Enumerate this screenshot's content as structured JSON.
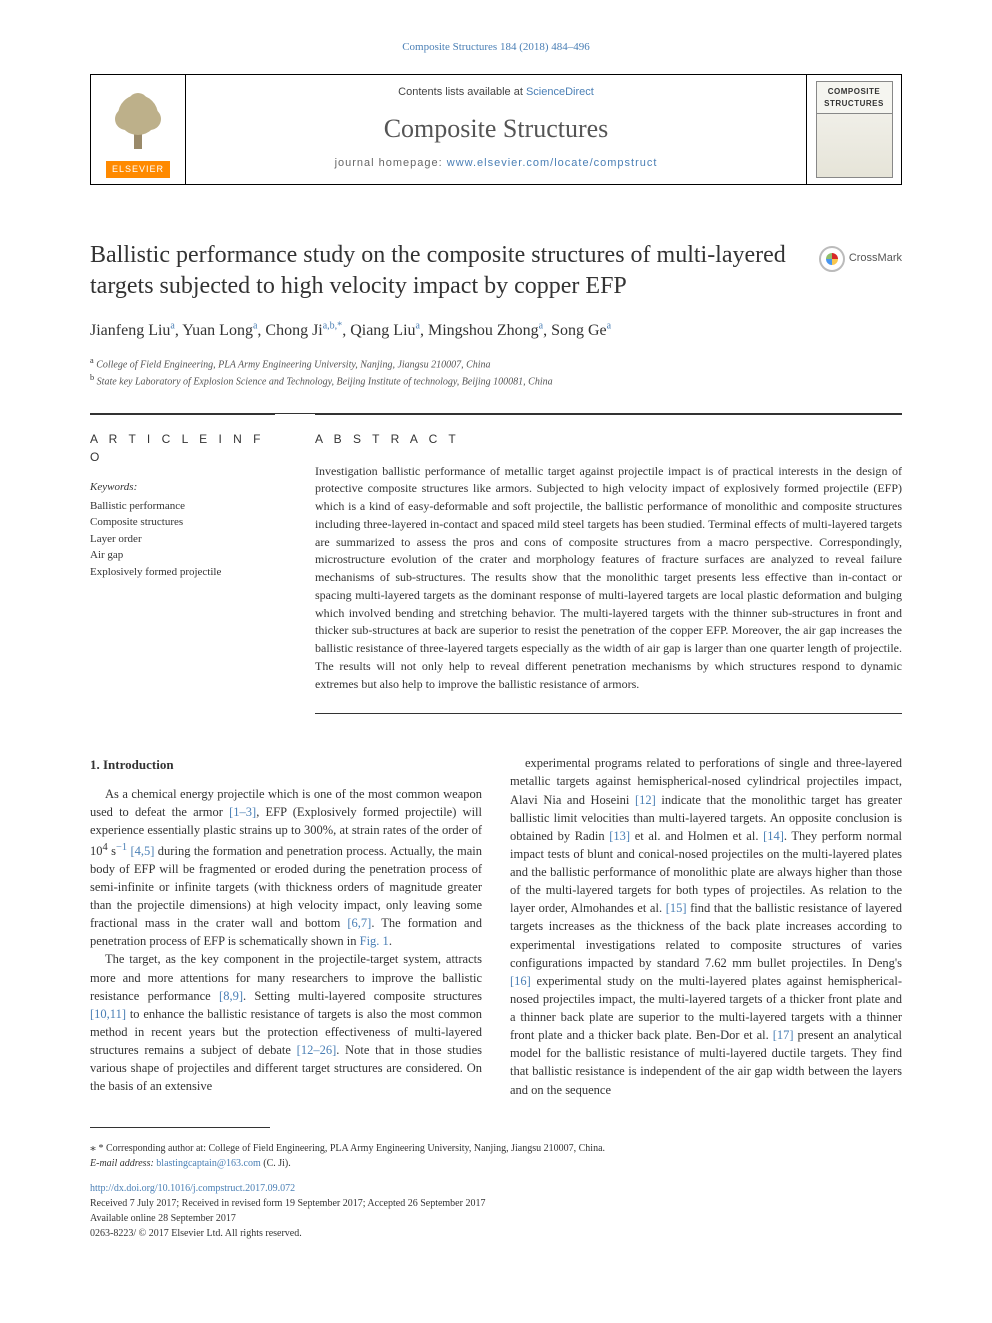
{
  "top_citation": "Composite Structures 184 (2018) 484–496",
  "header": {
    "contents_prefix": "Contents lists available at ",
    "contents_link": "ScienceDirect",
    "journal_title": "Composite Structures",
    "homepage_prefix": "journal homepage: ",
    "homepage_link": "www.elsevier.com/locate/compstruct",
    "publisher_label": "ELSEVIER",
    "cover_label": "COMPOSITE STRUCTURES"
  },
  "crossmark_label": "CrossMark",
  "title": "Ballistic performance study on the composite structures of multi-layered targets subjected to high velocity impact by copper EFP",
  "authors_html": "Jianfeng Liu<sup>a</sup>, Yuan Long<sup>a</sup>, Chong Ji<sup>a,b,*</sup>, Qiang Liu<sup>a</sup>, Mingshou Zhong<sup>a</sup>, Song Ge<sup>a</sup>",
  "affiliations": {
    "a": "College of Field Engineering, PLA Army Engineering University, Nanjing, Jiangsu 210007, China",
    "b": "State key Laboratory of Explosion Science and Technology, Beijing Institute of technology, Beijing 100081, China"
  },
  "article_info_head": "A R T I C L E  I N F O",
  "abstract_head": "A B S T R A C T",
  "keywords_label": "Keywords:",
  "keywords": [
    "Ballistic performance",
    "Composite structures",
    "Layer order",
    "Air gap",
    "Explosively formed projectile"
  ],
  "abstract": "Investigation ballistic performance of metallic target against projectile impact is of practical interests in the design of protective composite structures like armors. Subjected to high velocity impact of explosively formed projectile (EFP) which is a kind of easy-deformable and soft projectile, the ballistic performance of monolithic and composite structures including three-layered in-contact and spaced mild steel targets has been studied. Terminal effects of multi-layered targets are summarized to assess the pros and cons of composite structures from a macro perspective. Correspondingly, microstructure evolution of the crater and morphology features of fracture surfaces are analyzed to reveal failure mechanisms of sub-structures. The results show that the monolithic target presents less effective than in-contact or spacing multi-layered targets as the dominant response of multi-layered targets are local plastic deformation and bulging which involved bending and stretching behavior. The multi-layered targets with the thinner sub-structures in front and thicker sub-structures at back are superior to resist the penetration of the copper EFP. Moreover, the air gap increases the ballistic resistance of three-layered targets especially as the width of air gap is larger than one quarter length of projectile. The results will not only help to reveal different penetration mechanisms by which structures respond to dynamic extremes but also help to improve the ballistic resistance of armors.",
  "intro_heading": "1. Introduction",
  "intro_p1": "As a chemical energy projectile which is one of the most common weapon used to defeat the armor [1–3], EFP (Explosively formed projectile) will experience essentially plastic strains up to 300%, at strain rates of the order of 10⁴ s⁻¹ [4,5] during the formation and penetration process. Actually, the main body of EFP will be fragmented or eroded during the penetration process of semi-infinite or infinite targets (with thickness orders of magnitude greater than the projectile dimensions) at high velocity impact, only leaving some fractional mass in the crater wall and bottom [6,7]. The formation and penetration process of EFP is schematically shown in Fig. 1.",
  "intro_p2": "The target, as the key component in the projectile-target system, attracts more and more attentions for many researchers to improve the ballistic resistance performance [8,9]. Setting multi-layered composite structures [10,11] to enhance the ballistic resistance of targets is also the most common method in recent years but the protection effectiveness of multi-layered structures remains a subject of debate [12–26]. Note that in those studies various shape of projectiles and different target structures are considered. On the basis of an extensive",
  "intro_p3": "experimental programs related to perforations of single and three-layered metallic targets against hemispherical-nosed cylindrical projectiles impact, Alavi Nia and Hoseini [12] indicate that the monolithic target has greater ballistic limit velocities than multi-layered targets. An opposite conclusion is obtained by Radin [13] et al. and Holmen et al. [14]. They perform normal impact tests of blunt and conical-nosed projectiles on the multi-layered plates and the ballistic performance of monolithic plate are always higher than those of the multi-layered targets for both types of projectiles. As relation to the layer order, Almohandes et al. [15] find that the ballistic resistance of layered targets increases as the thickness of the back plate increases according to experimental investigations related to composite structures of varies configurations impacted by standard 7.62 mm bullet projectiles. In Deng's [16] experimental study on the multi-layered plates against hemispherical-nosed projectiles impact, the multi-layered targets of a thicker front plate and a thinner back plate are superior to the multi-layered targets with a thinner front plate and a thicker back plate. Ben-Dor et al. [17] present an analytical model for the ballistic resistance of multi-layered ductile targets. They find that ballistic resistance is independent of the air gap width between the layers and on the sequence",
  "footer": {
    "corr_label": "* Corresponding author at: College of Field Engineering, PLA Army Engineering University, Nanjing, Jiangsu 210007, China.",
    "email_label": "E-mail address: ",
    "email": "blastingcaptain@163.com",
    "email_suffix": " (C. Ji).",
    "doi": "http://dx.doi.org/10.1016/j.compstruct.2017.09.072",
    "received": "Received 7 July 2017; Received in revised form 19 September 2017; Accepted 26 September 2017",
    "available": "Available online 28 September 2017",
    "copyright": "0263-8223/ © 2017 Elsevier Ltd. All rights reserved."
  },
  "colors": {
    "link": "#4a7fb5",
    "text": "#333333",
    "elsevier_orange": "#ff8a00"
  }
}
